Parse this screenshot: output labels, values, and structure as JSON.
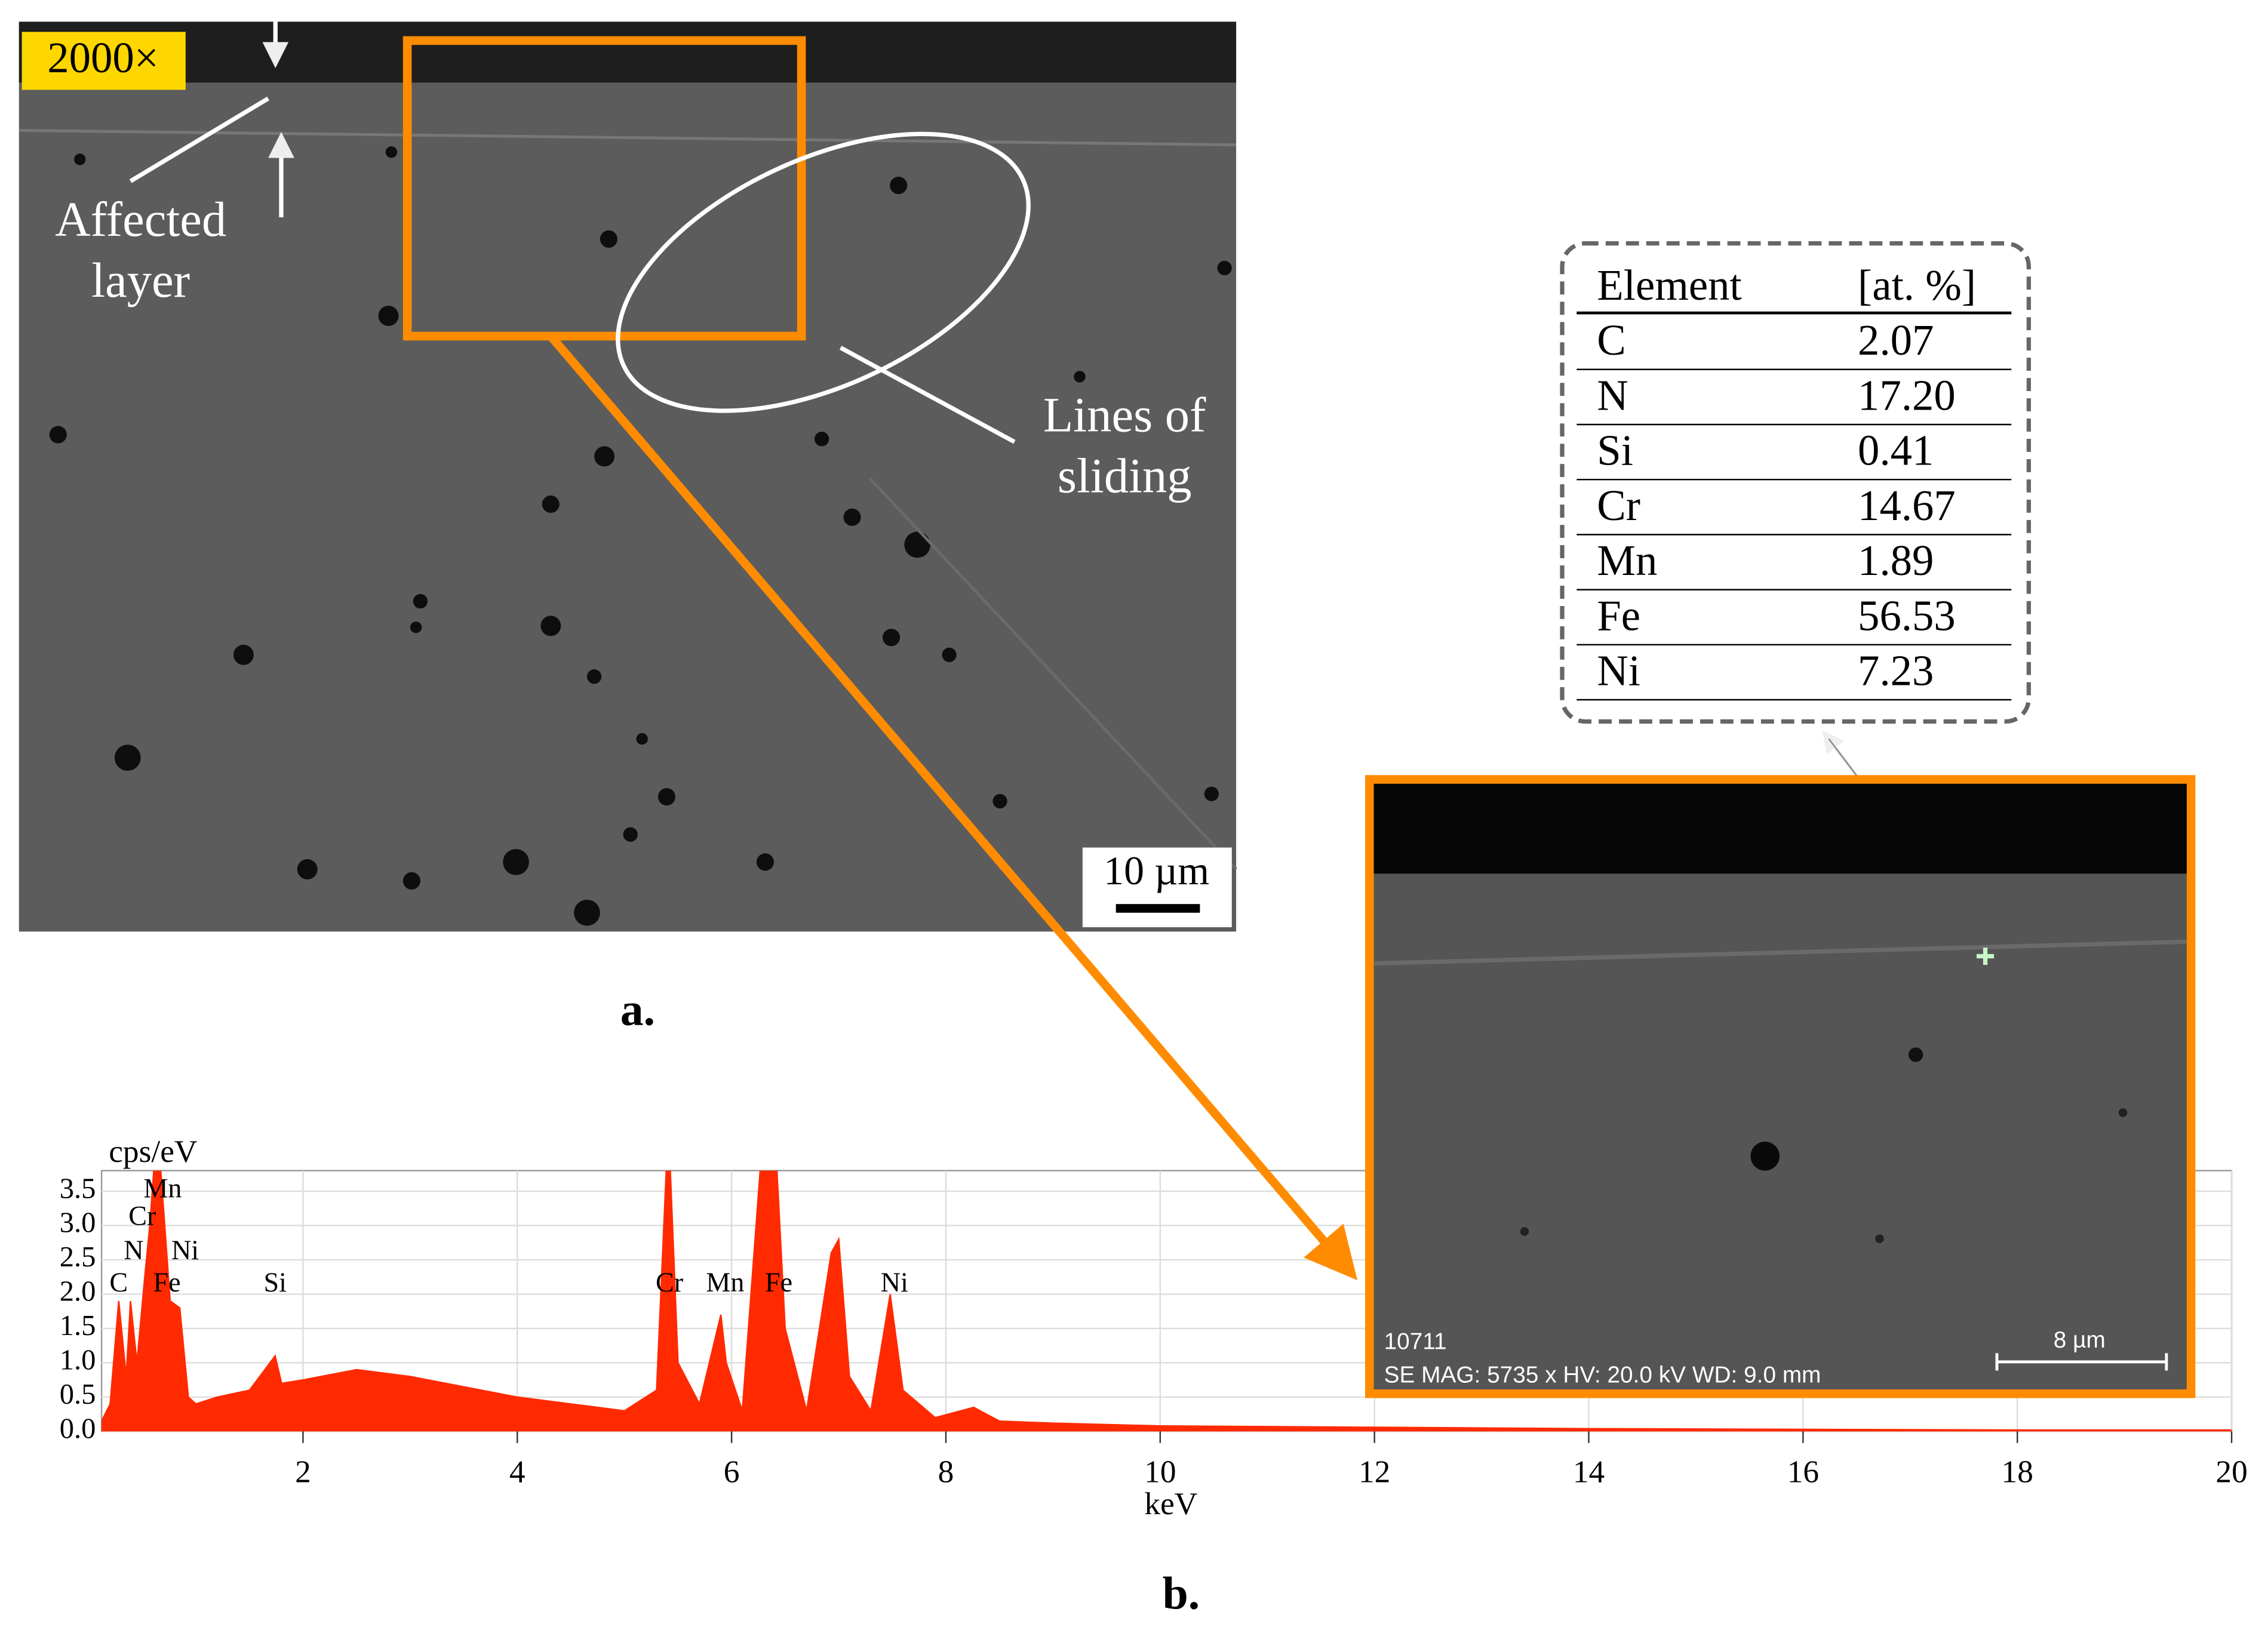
{
  "figure": {
    "magnification": "2000×",
    "affected_label": [
      "Affected",
      "layer"
    ],
    "sliding_label": [
      "Lines of",
      "sliding"
    ],
    "scale_a": "10 µm",
    "panel_a": "a.",
    "panel_b": "b.",
    "inset": {
      "id": "10711",
      "info": "SE  MAG: 5735 x  HV: 20.0 kV  WD: 9.0 mm",
      "scale": "8 µm"
    }
  },
  "table": {
    "headers": [
      "Element",
      "[at. %]"
    ],
    "rows": [
      [
        "C",
        "2.07"
      ],
      [
        "N",
        "17.20"
      ],
      [
        "Si",
        "0.41"
      ],
      [
        "Cr",
        "14.67"
      ],
      [
        "Mn",
        "1.89"
      ],
      [
        "Fe",
        "56.53"
      ],
      [
        "Ni",
        "7.23"
      ]
    ]
  },
  "chart_data": {
    "type": "area",
    "y_label": "cps/eV",
    "x_label": "keV",
    "color": "#ff2a00",
    "grid": true,
    "x": [
      0.12,
      0.2,
      0.28,
      0.35,
      0.39,
      0.45,
      0.52,
      0.57,
      0.64,
      0.7,
      0.76,
      0.85,
      0.93,
      1.0,
      1.2,
      1.5,
      1.74,
      1.8,
      2.0,
      2.5,
      3.0,
      3.5,
      4.0,
      4.5,
      5.0,
      5.3,
      5.41,
      5.5,
      5.7,
      5.9,
      5.95,
      6.1,
      6.3,
      6.4,
      6.5,
      6.7,
      6.93,
      7.0,
      7.1,
      7.3,
      7.48,
      7.6,
      7.9,
      8.26,
      8.5,
      9.0,
      10,
      12,
      14,
      16,
      18,
      20
    ],
    "values": [
      0.15,
      0.4,
      1.9,
      0.8,
      1.9,
      1.0,
      2.2,
      3.0,
      4.5,
      3.2,
      1.9,
      1.8,
      0.5,
      0.4,
      0.5,
      0.6,
      1.1,
      0.7,
      0.75,
      0.9,
      0.8,
      0.65,
      0.5,
      0.4,
      0.3,
      0.6,
      4.5,
      1.0,
      0.4,
      1.7,
      1.0,
      0.3,
      4.5,
      4.5,
      1.5,
      0.3,
      2.6,
      2.8,
      0.8,
      0.3,
      2.0,
      0.6,
      0.2,
      0.35,
      0.15,
      0.12,
      0.08,
      0.06,
      0.04,
      0.03,
      0.02,
      0.02
    ],
    "xlim": [
      0.12,
      20
    ],
    "ylim": [
      0,
      3.8
    ],
    "xticks": [
      2,
      4,
      6,
      8,
      10,
      12,
      14,
      16,
      18,
      20
    ],
    "yticks": [
      {
        "value": 0,
        "label": "0.0"
      },
      0.5,
      {
        "value": 1,
        "label": "1.0"
      },
      1.5,
      {
        "value": 2,
        "label": "2.0"
      },
      2.5,
      {
        "value": 3,
        "label": "3.0"
      },
      3.5
    ],
    "peak_labels": [
      {
        "text": "C",
        "x": 0.28,
        "y": 2.13
      },
      {
        "text": "N",
        "x": 0.42,
        "y": 2.6
      },
      {
        "text": "Cr",
        "x": 0.5,
        "y": 3.1
      },
      {
        "text": "Mn",
        "x": 0.69,
        "y": 3.5
      },
      {
        "text": "Ni",
        "x": 0.9,
        "y": 2.6
      },
      {
        "text": "Fe",
        "x": 0.73,
        "y": 2.13
      },
      {
        "text": "Si",
        "x": 1.74,
        "y": 2.13
      },
      {
        "text": "Cr",
        "x": 5.42,
        "y": 2.13
      },
      {
        "text": "Mn",
        "x": 5.94,
        "y": 2.13
      },
      {
        "text": "Fe",
        "x": 6.44,
        "y": 2.13
      },
      {
        "text": "Ni",
        "x": 7.52,
        "y": 2.13
      }
    ]
  }
}
